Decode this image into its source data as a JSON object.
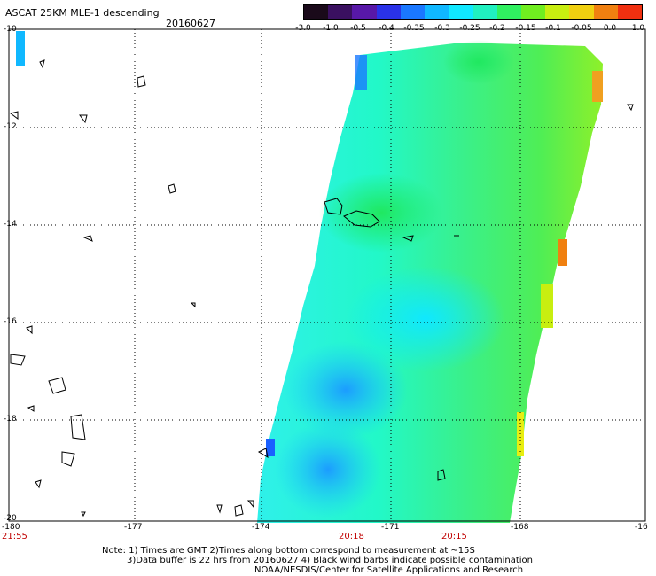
{
  "header": {
    "title": "ASCAT 25KM MLE-1 descending",
    "date": "20160627"
  },
  "colorbar": {
    "colors": [
      "#1a0a1a",
      "#3a1060",
      "#5818a8",
      "#2a32e8",
      "#1a78ff",
      "#10b8ff",
      "#10e8ff",
      "#20f0c0",
      "#30f060",
      "#70ee20",
      "#c8ee10",
      "#f0d010",
      "#f08010",
      "#f03010"
    ],
    "labels": [
      "-3.0",
      "-1.0",
      "-0.5",
      "-0.4",
      "-0.35",
      "-0.3",
      "-0.25",
      "-0.2",
      "-0.15",
      "-0.1",
      "-0.05",
      "0.0",
      "1.0"
    ]
  },
  "axes": {
    "lat_labels": [
      "-10",
      "-12",
      "-14",
      "-16",
      "-18",
      "-20"
    ],
    "lon_labels": [
      "-180",
      "-177",
      "-174",
      "-171",
      "-168",
      "-16"
    ]
  },
  "times": [
    "21:55",
    "20:18",
    "20:15"
  ],
  "notes": [
    "Note: 1) Times are GMT 2)Times along bottom correspond to measurement at ~15S",
    "3)Data buffer is 22 hrs from 20160627 4) Black wind barbs indicate possible contamination",
    "NOAA/NESDIS/Center for Satellite Applications and Research"
  ]
}
